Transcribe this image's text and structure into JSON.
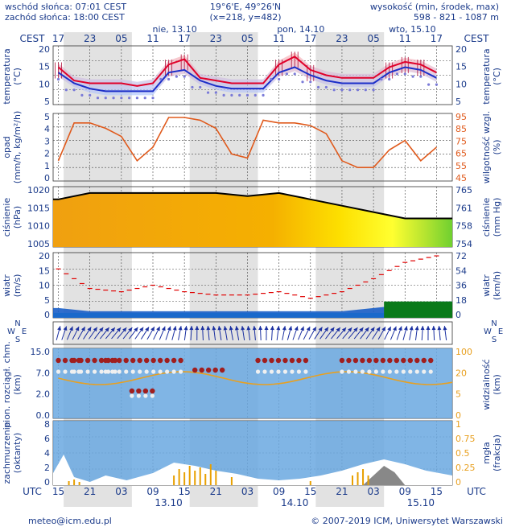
{
  "header": {
    "sunrise": "wschód słońca: 07:01 CEST",
    "sunset": "zachód słońca: 18:00 CEST",
    "coords": "19°6'E, 49°26'N",
    "grid": "(x=218, y=482)",
    "altitude_label": "wysokość (min, środek, max)",
    "altitude_values": "598 - 821 - 1087 m"
  },
  "time": {
    "cest_label": "CEST",
    "utc_label": "UTC",
    "cest_ticks": [
      "17",
      "23",
      "05",
      "11",
      "17",
      "23",
      "05",
      "11",
      "17",
      "23",
      "05",
      "11",
      "17"
    ],
    "utc_ticks": [
      "15",
      "21",
      "03",
      "09",
      "15",
      "21",
      "03",
      "09",
      "15",
      "21",
      "03",
      "09",
      "15"
    ],
    "day_labels_top": [
      "nie, 13.10",
      "pon, 14.10",
      "wto, 15.10"
    ],
    "day_labels_bottom": [
      "13.10",
      "14.10",
      "15.10"
    ]
  },
  "panels": {
    "temperature": {
      "label_left": [
        "temperatura",
        "(°C)"
      ],
      "label_right": [
        "temperatura",
        "(°C)"
      ],
      "ticks": [
        "20",
        "15",
        "10",
        "5"
      ]
    },
    "precip": {
      "label_left": [
        "opad",
        "(mm/h, kg/m²/h)"
      ],
      "label_right": [
        "wilgotność wzgl.",
        "(%)"
      ],
      "ticks_left": [
        "5",
        "4",
        "3",
        "2",
        "1",
        "0"
      ],
      "ticks_right": [
        "95",
        "85",
        "75",
        "65",
        "55",
        "45"
      ]
    },
    "pressure": {
      "label_left": [
        "ciśnienie",
        "(hPa)"
      ],
      "label_right": [
        "ciśnienie",
        "(mm Hg)"
      ],
      "ticks_left": [
        "1020",
        "1015",
        "1010",
        "1005"
      ],
      "ticks_right": [
        "765",
        "761",
        "758",
        "754"
      ]
    },
    "wind": {
      "label_left": [
        "wiatr",
        "(m/s)"
      ],
      "label_right": [
        "wiatr",
        "(km/h)"
      ],
      "ticks_left": [
        "20",
        "15",
        "10",
        "5",
        "0"
      ],
      "ticks_right": [
        "72",
        "54",
        "36",
        "18",
        "0"
      ]
    },
    "compass": {
      "label_left": [
        "N",
        "W",
        "E",
        "S"
      ],
      "label_right": [
        "N",
        "W",
        "E",
        "S"
      ]
    },
    "clouds_base": {
      "label_left": [
        "pion. rozciągł. chm.",
        "(km)"
      ],
      "label_right": [
        "widzialność",
        "(km)"
      ],
      "ticks_left": [
        "15.0",
        "7.0",
        "2.0",
        "0.0"
      ],
      "ticks_right": [
        "100",
        "20",
        "5",
        "0"
      ]
    },
    "cloud_cover": {
      "label_left": [
        "zachmurzenie",
        "(oktanty)"
      ],
      "label_right": [
        "mgła",
        "(frakcja)"
      ],
      "ticks_left": [
        "8",
        "6",
        "4",
        "2",
        "0"
      ],
      "ticks_right": [
        "1",
        "0.75",
        "0.5",
        "0.25",
        "0"
      ]
    }
  },
  "footer": {
    "email": "meteo@icm.edu.pl",
    "copyright": "© 2007-2019 ICM, Uniwersytet Warszawski"
  },
  "colors": {
    "axis_text": "#1a3a8a",
    "night_band": "#d8d8d8",
    "temp_line": "#e0002a",
    "dew_line": "#1c2fc8",
    "humidity": "#e05a1c",
    "pressure_line": "#000000",
    "wind_fill": "#1a5ec8",
    "gust": "#e00000",
    "cloud_panel": "#6aa8e0"
  },
  "chart_data": [
    {
      "type": "line",
      "name_ref": "temperature",
      "x_hours_utc_from_15": [
        0,
        3,
        6,
        9,
        12,
        15,
        18,
        21,
        24,
        27,
        30,
        33,
        36,
        39,
        42,
        45,
        48,
        51,
        54,
        57,
        60,
        63,
        66,
        69,
        72
      ],
      "series": [
        {
          "name": "temperature",
          "values": [
            14,
            9,
            8,
            8,
            8,
            7,
            8,
            15,
            17,
            10,
            9,
            8,
            8,
            8,
            15,
            18,
            13,
            11,
            10,
            10,
            10,
            14,
            16,
            15,
            12
          ]
        },
        {
          "name": "dewpoint",
          "values": [
            12,
            8,
            6,
            5,
            5,
            5,
            5,
            12,
            13,
            9,
            7,
            6,
            6,
            6,
            12,
            14,
            11,
            9,
            8,
            8,
            8,
            12,
            14,
            13,
            10
          ]
        }
      ],
      "ylim": [
        0,
        22
      ]
    },
    {
      "type": "line",
      "name_ref": "humidity",
      "x_hours_utc_from_15": [
        0,
        3,
        6,
        9,
        12,
        15,
        18,
        21,
        24,
        27,
        30,
        33,
        36,
        39,
        42,
        45,
        48,
        51,
        54,
        57,
        60,
        63,
        66,
        69,
        72
      ],
      "series": [
        {
          "name": "humidity",
          "values": [
            60,
            88,
            88,
            84,
            78,
            60,
            70,
            92,
            92,
            90,
            84,
            65,
            62,
            90,
            88,
            88,
            86,
            80,
            60,
            55,
            55,
            68,
            75,
            60,
            70
          ]
        }
      ],
      "ylim": [
        45,
        95
      ]
    },
    {
      "type": "area",
      "name_ref": "pressure",
      "x_hours_utc_from_15": [
        0,
        6,
        12,
        18,
        24,
        30,
        36,
        42,
        48,
        54,
        60,
        66,
        72
      ],
      "series": [
        {
          "name": "pressure",
          "values": [
            1018,
            1020,
            1020,
            1020,
            1020,
            1020,
            1019,
            1020,
            1018,
            1016,
            1014,
            1012,
            1012
          ]
        }
      ],
      "ylim": [
        1003,
        1022
      ]
    },
    {
      "type": "line",
      "name_ref": "wind",
      "x_hours_utc_from_15": [
        0,
        6,
        12,
        18,
        24,
        30,
        36,
        42,
        48,
        54,
        60,
        66,
        72
      ],
      "series": [
        {
          "name": "wind",
          "values": [
            3,
            2,
            2,
            2,
            2,
            2,
            2,
            2,
            2,
            2,
            3,
            4,
            5
          ]
        },
        {
          "name": "gusts",
          "values": [
            15,
            9,
            8,
            10,
            8,
            7,
            7,
            8,
            6,
            8,
            12,
            17,
            19
          ]
        }
      ],
      "ylim": [
        0,
        20
      ]
    }
  ]
}
